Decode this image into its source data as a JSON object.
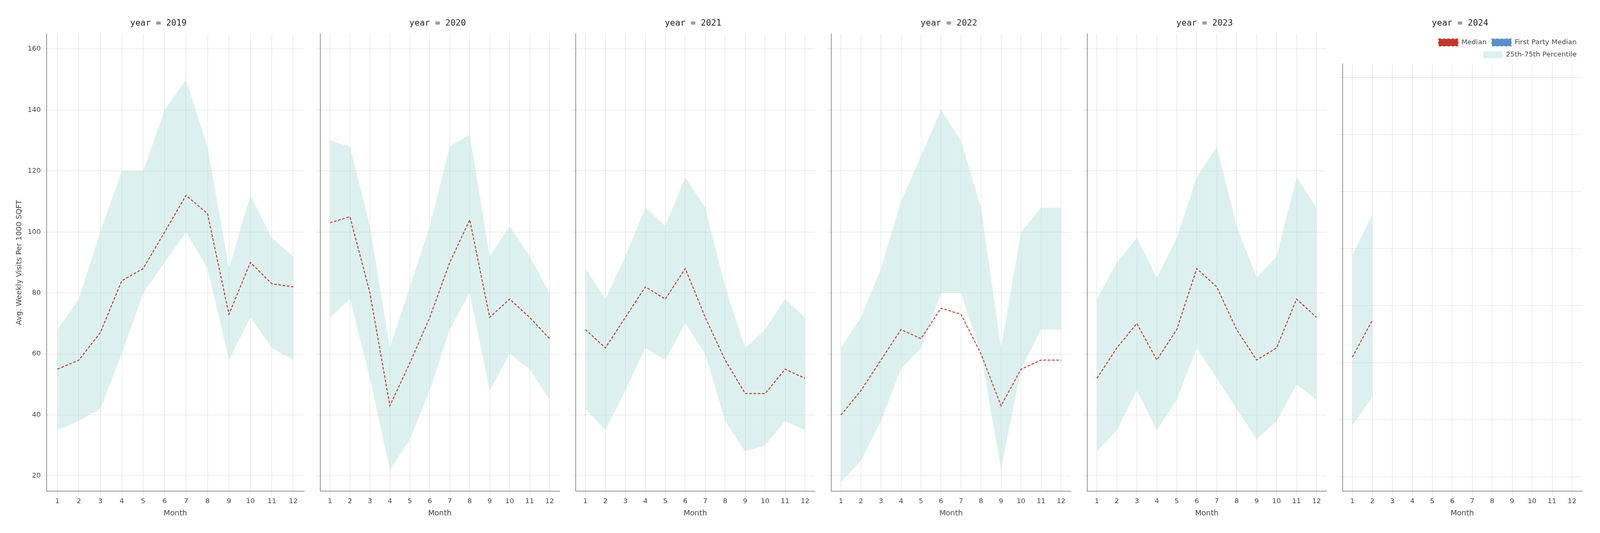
{
  "chart_data": [
    {
      "type": "line",
      "title": "year = 2019",
      "x_label": "Month",
      "y_label": "Avg. Weekly Visits Per 1000 SQFT",
      "x": [
        1,
        2,
        3,
        4,
        5,
        6,
        7,
        8,
        9,
        10,
        11,
        12
      ],
      "xlim": [
        0.5,
        12.5
      ],
      "xticks": [
        1,
        2,
        3,
        4,
        5,
        6,
        7,
        8,
        9,
        10,
        11,
        12
      ],
      "ylim": [
        15,
        165
      ],
      "yticks": [
        20,
        40,
        60,
        80,
        100,
        120,
        140,
        160
      ],
      "grid": true,
      "series": [
        {
          "name": "Median",
          "type": "line",
          "color": "#c0392b",
          "line_style": "dashed",
          "values": [
            55,
            58,
            67,
            84,
            88,
            100,
            112,
            106,
            73,
            90,
            83,
            82
          ]
        },
        {
          "name": "25th-75th Percentile",
          "type": "area",
          "color": "#b2dfdb",
          "low": [
            35,
            38,
            42,
            60,
            80,
            90,
            100,
            88,
            58,
            72,
            62,
            58
          ],
          "high": [
            68,
            78,
            100,
            120,
            120,
            140,
            150,
            128,
            88,
            112,
            98,
            92
          ]
        }
      ]
    },
    {
      "type": "line",
      "title": "year = 2020",
      "x_label": "Month",
      "x": [
        1,
        2,
        3,
        4,
        5,
        6,
        7,
        8,
        9,
        10,
        11,
        12
      ],
      "xlim": [
        0.5,
        12.5
      ],
      "xticks": [
        1,
        2,
        3,
        4,
        5,
        6,
        7,
        8,
        9,
        10,
        11,
        12
      ],
      "ylim": [
        15,
        165
      ],
      "yticks": [
        20,
        40,
        60,
        80,
        100,
        120,
        140,
        160
      ],
      "grid": true,
      "tick_labels": "x",
      "series": [
        {
          "name": "Median",
          "type": "line",
          "color": "#c0392b",
          "line_style": "dashed",
          "values": [
            103,
            105,
            80,
            43,
            57,
            72,
            90,
            104,
            72,
            78,
            72,
            65
          ]
        },
        {
          "name": "25th-75th Percentile",
          "type": "area",
          "color": "#b2dfdb",
          "low": [
            72,
            78,
            52,
            22,
            32,
            48,
            68,
            80,
            48,
            60,
            55,
            45
          ],
          "high": [
            130,
            128,
            102,
            62,
            82,
            102,
            128,
            132,
            92,
            102,
            92,
            80
          ]
        }
      ]
    },
    {
      "type": "line",
      "title": "year = 2021",
      "x_label": "Month",
      "x": [
        1,
        2,
        3,
        4,
        5,
        6,
        7,
        8,
        9,
        10,
        11,
        12
      ],
      "xlim": [
        0.5,
        12.5
      ],
      "xticks": [
        1,
        2,
        3,
        4,
        5,
        6,
        7,
        8,
        9,
        10,
        11,
        12
      ],
      "ylim": [
        15,
        165
      ],
      "yticks": [
        20,
        40,
        60,
        80,
        100,
        120,
        140,
        160
      ],
      "grid": true,
      "tick_labels": "x",
      "series": [
        {
          "name": "Median",
          "type": "line",
          "color": "#c0392b",
          "line_style": "dashed",
          "values": [
            68,
            62,
            72,
            82,
            78,
            88,
            72,
            58,
            47,
            47,
            55,
            52
          ]
        },
        {
          "name": "25th-75th Percentile",
          "type": "area",
          "color": "#b2dfdb",
          "low": [
            42,
            35,
            48,
            62,
            58,
            70,
            60,
            38,
            28,
            30,
            38,
            35
          ],
          "high": [
            88,
            78,
            92,
            108,
            102,
            118,
            108,
            82,
            62,
            68,
            78,
            72
          ]
        }
      ]
    },
    {
      "type": "line",
      "title": "year = 2022",
      "x_label": "Month",
      "x": [
        1,
        2,
        3,
        4,
        5,
        6,
        7,
        8,
        9,
        10,
        11,
        12
      ],
      "xlim": [
        0.5,
        12.5
      ],
      "xticks": [
        1,
        2,
        3,
        4,
        5,
        6,
        7,
        8,
        9,
        10,
        11,
        12
      ],
      "ylim": [
        15,
        165
      ],
      "yticks": [
        20,
        40,
        60,
        80,
        100,
        120,
        140,
        160
      ],
      "grid": true,
      "tick_labels": "x",
      "series": [
        {
          "name": "Median",
          "type": "line",
          "color": "#c0392b",
          "line_style": "dashed",
          "values": [
            40,
            48,
            58,
            68,
            65,
            75,
            73,
            60,
            43,
            55,
            58,
            58
          ]
        },
        {
          "name": "25th-75th Percentile",
          "type": "area",
          "color": "#b2dfdb",
          "low": [
            18,
            25,
            38,
            55,
            62,
            80,
            80,
            60,
            22,
            55,
            68,
            68
          ],
          "high": [
            62,
            72,
            88,
            110,
            125,
            140,
            130,
            108,
            62,
            100,
            108,
            108
          ]
        }
      ]
    },
    {
      "type": "line",
      "title": "year = 2023",
      "x_label": "Month",
      "x": [
        1,
        2,
        3,
        4,
        5,
        6,
        7,
        8,
        9,
        10,
        11,
        12
      ],
      "xlim": [
        0.5,
        12.5
      ],
      "xticks": [
        1,
        2,
        3,
        4,
        5,
        6,
        7,
        8,
        9,
        10,
        11,
        12
      ],
      "ylim": [
        15,
        165
      ],
      "yticks": [
        20,
        40,
        60,
        80,
        100,
        120,
        140,
        160
      ],
      "grid": true,
      "tick_labels": "x",
      "series": [
        {
          "name": "Median",
          "type": "line",
          "color": "#c0392b",
          "line_style": "dashed",
          "values": [
            52,
            62,
            70,
            58,
            68,
            88,
            82,
            68,
            58,
            62,
            78,
            72
          ]
        },
        {
          "name": "25th-75th Percentile",
          "type": "area",
          "color": "#b2dfdb",
          "low": [
            28,
            35,
            48,
            35,
            45,
            62,
            52,
            42,
            32,
            38,
            50,
            45
          ],
          "high": [
            78,
            90,
            98,
            85,
            98,
            118,
            128,
            102,
            85,
            92,
            118,
            108
          ]
        }
      ]
    },
    {
      "type": "line",
      "title": "year = 2024",
      "x_label": "Month",
      "x": [
        1,
        2,
        3,
        4,
        5,
        6,
        7,
        8,
        9,
        10,
        11,
        12
      ],
      "xlim": [
        0.5,
        12.5
      ],
      "xticks": [
        1,
        2,
        3,
        4,
        5,
        6,
        7,
        8,
        9,
        10,
        11,
        12
      ],
      "ylim": [
        15,
        165
      ],
      "yticks": [
        20,
        40,
        60,
        80,
        100,
        120,
        140,
        160
      ],
      "grid": true,
      "tick_labels": "x",
      "legend": "upper right",
      "series": [
        {
          "name": "Median",
          "type": "line",
          "color": "#c0392b",
          "line_style": "dashed",
          "values": [
            62,
            75,
            null,
            null,
            null,
            null,
            null,
            null,
            null,
            null,
            null,
            null
          ]
        },
        {
          "name": "First Party Median",
          "type": "line",
          "color": "#5b8fc9",
          "line_style": "dashed",
          "values": [
            null,
            null,
            null,
            null,
            null,
            null,
            null,
            null,
            null,
            null,
            null,
            null
          ]
        },
        {
          "name": "25th-75th Percentile",
          "type": "area",
          "color": "#b2dfdb",
          "low": [
            38,
            48,
            null,
            null,
            null,
            null,
            null,
            null,
            null,
            null,
            null,
            null
          ],
          "high": [
            98,
            112,
            null,
            null,
            null,
            null,
            null,
            null,
            null,
            null,
            null,
            null
          ]
        }
      ]
    }
  ]
}
